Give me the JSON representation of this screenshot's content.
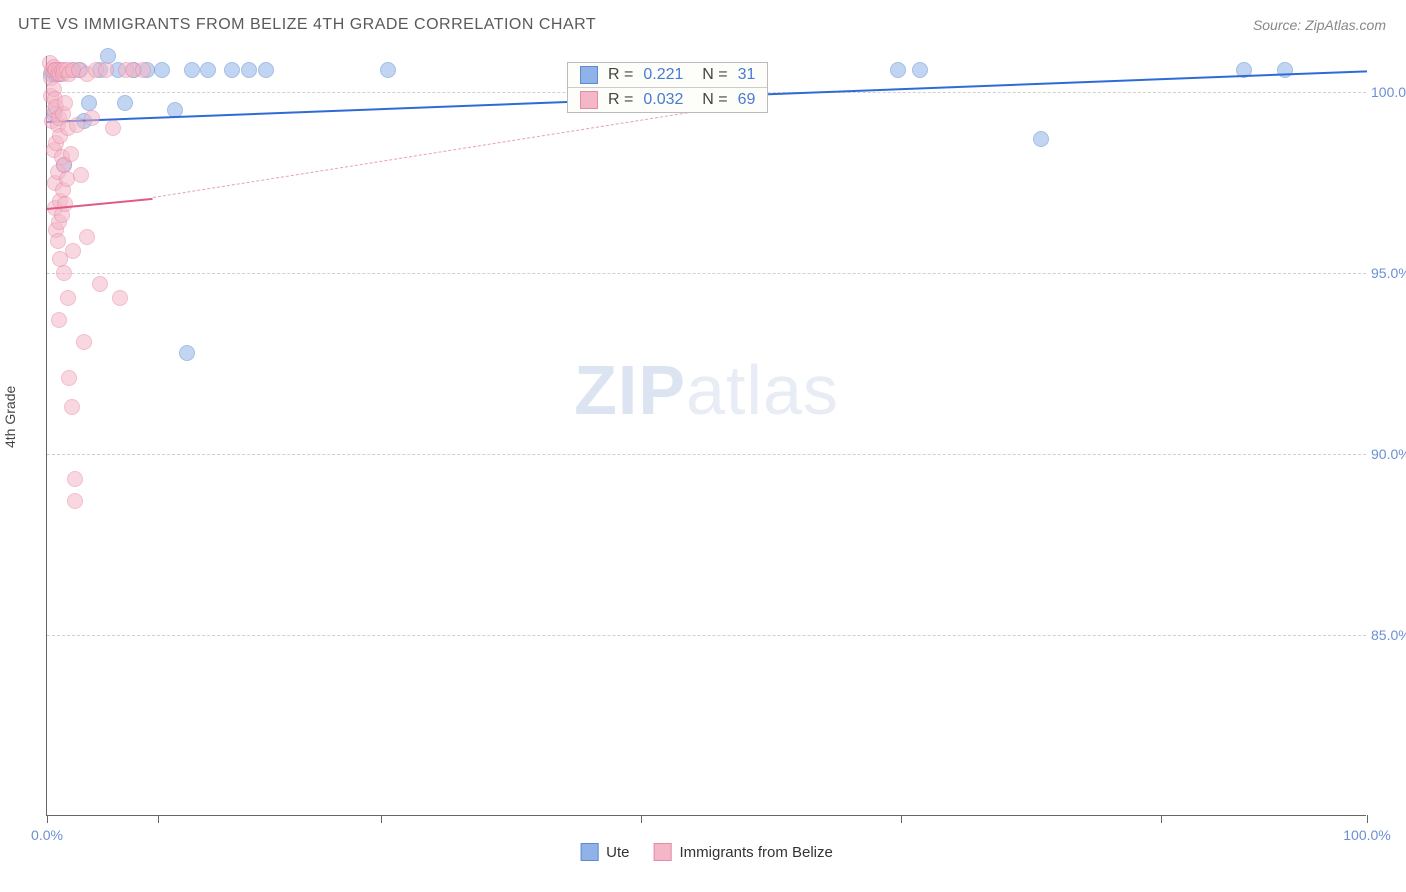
{
  "title": "UTE VS IMMIGRANTS FROM BELIZE 4TH GRADE CORRELATION CHART",
  "source": "Source: ZipAtlas.com",
  "ylabel": "4th Grade",
  "watermark_zip": "ZIP",
  "watermark_atlas": "atlas",
  "chart": {
    "type": "scatter",
    "background_color": "#ffffff",
    "grid_color": "#d0d0d0",
    "border_color": "#666666",
    "xlim": [
      0,
      100
    ],
    "ylim": [
      80,
      101
    ],
    "xtick_positions": [
      0,
      8.4,
      25.3,
      45.0,
      64.7,
      84.4,
      100
    ],
    "xtick_label_left": "0.0%",
    "xtick_label_right": "100.0%",
    "ytick_positions": [
      85,
      90,
      95,
      100
    ],
    "ytick_labels": [
      "85.0%",
      "90.0%",
      "95.0%",
      "100.0%"
    ],
    "tick_label_color": "#6b8fd4",
    "tick_fontsize": 14,
    "marker_radius": 8,
    "marker_opacity": 0.55
  },
  "series": [
    {
      "name": "Ute",
      "fill": "#8fb3e8",
      "stroke": "#5e8bd0",
      "r_label": "R =",
      "r_value": "0.221",
      "n_label": "N =",
      "n_value": "31",
      "trend": {
        "x1": 0,
        "y1": 99.2,
        "x2": 100,
        "y2": 100.6,
        "color": "#2e6bd6",
        "width": 2.5,
        "dash": "solid"
      },
      "points": [
        [
          0.3,
          100.5
        ],
        [
          0.5,
          99.4
        ],
        [
          0.6,
          100.5
        ],
        [
          1.0,
          100.5
        ],
        [
          1.3,
          98.0
        ],
        [
          2.0,
          100.6
        ],
        [
          2.5,
          100.6
        ],
        [
          2.8,
          99.2
        ],
        [
          3.2,
          99.7
        ],
        [
          4.0,
          100.6
        ],
        [
          4.6,
          101.0
        ],
        [
          5.4,
          100.6
        ],
        [
          5.9,
          99.7
        ],
        [
          6.6,
          100.6
        ],
        [
          7.6,
          100.6
        ],
        [
          8.7,
          100.6
        ],
        [
          9.7,
          99.5
        ],
        [
          10.6,
          92.8
        ],
        [
          11.0,
          100.6
        ],
        [
          12.2,
          100.6
        ],
        [
          14.0,
          100.6
        ],
        [
          15.3,
          100.6
        ],
        [
          16.6,
          100.6
        ],
        [
          25.8,
          100.6
        ],
        [
          64.5,
          100.6
        ],
        [
          66.1,
          100.6
        ],
        [
          75.3,
          98.7
        ],
        [
          90.7,
          100.6
        ],
        [
          93.8,
          100.6
        ]
      ]
    },
    {
      "name": "Immigrants from Belize",
      "fill": "#f4b7c7",
      "stroke": "#e68aa7",
      "r_label": "R =",
      "r_value": "0.032",
      "n_label": "N =",
      "n_value": "69",
      "trend": {
        "x1": 0,
        "y1": 96.8,
        "x2": 100,
        "y2": 100.3,
        "color": "#e05a84",
        "width": 2,
        "dash": "solid",
        "segment_end": 8
      },
      "trend_dashed": {
        "x1": 8,
        "y1": 97.1,
        "x2": 53,
        "y2": 99.7,
        "color": "#e8a0b5",
        "width": 1.5
      },
      "points": [
        [
          0.2,
          100.8
        ],
        [
          0.3,
          100.4
        ],
        [
          0.3,
          99.9
        ],
        [
          0.4,
          100.6
        ],
        [
          0.4,
          99.2
        ],
        [
          0.5,
          100.7
        ],
        [
          0.5,
          100.1
        ],
        [
          0.5,
          99.5
        ],
        [
          0.5,
          98.4
        ],
        [
          0.6,
          100.6
        ],
        [
          0.6,
          99.8
        ],
        [
          0.6,
          97.5
        ],
        [
          0.6,
          96.8
        ],
        [
          0.7,
          100.6
        ],
        [
          0.7,
          99.6
        ],
        [
          0.7,
          98.6
        ],
        [
          0.7,
          96.2
        ],
        [
          0.8,
          100.5
        ],
        [
          0.8,
          99.1
        ],
        [
          0.8,
          97.8
        ],
        [
          0.8,
          95.9
        ],
        [
          0.9,
          100.6
        ],
        [
          0.9,
          99.3
        ],
        [
          0.9,
          96.4
        ],
        [
          0.9,
          93.7
        ],
        [
          1.0,
          100.5
        ],
        [
          1.0,
          98.8
        ],
        [
          1.0,
          97.0
        ],
        [
          1.0,
          95.4
        ],
        [
          1.1,
          100.6
        ],
        [
          1.1,
          98.2
        ],
        [
          1.1,
          96.6
        ],
        [
          1.2,
          100.5
        ],
        [
          1.2,
          99.4
        ],
        [
          1.2,
          97.3
        ],
        [
          1.3,
          100.6
        ],
        [
          1.3,
          98.0
        ],
        [
          1.3,
          95.0
        ],
        [
          1.4,
          99.7
        ],
        [
          1.4,
          96.9
        ],
        [
          1.5,
          100.6
        ],
        [
          1.5,
          97.6
        ],
        [
          1.6,
          99.0
        ],
        [
          1.6,
          94.3
        ],
        [
          1.7,
          100.5
        ],
        [
          1.7,
          92.1
        ],
        [
          1.8,
          98.3
        ],
        [
          1.9,
          91.3
        ],
        [
          2.0,
          100.6
        ],
        [
          2.0,
          95.6
        ],
        [
          2.1,
          89.3
        ],
        [
          2.1,
          88.7
        ],
        [
          2.3,
          99.1
        ],
        [
          2.4,
          100.6
        ],
        [
          2.6,
          97.7
        ],
        [
          2.8,
          93.1
        ],
        [
          3.0,
          100.5
        ],
        [
          3.0,
          96.0
        ],
        [
          3.4,
          99.3
        ],
        [
          3.7,
          100.6
        ],
        [
          4.0,
          94.7
        ],
        [
          4.5,
          100.6
        ],
        [
          5.0,
          99.0
        ],
        [
          5.5,
          94.3
        ],
        [
          6.0,
          100.6
        ],
        [
          6.5,
          100.6
        ],
        [
          7.3,
          100.6
        ]
      ]
    }
  ],
  "bottom_legend": [
    {
      "label": "Ute",
      "fill": "#8fb3e8",
      "stroke": "#5e8bd0"
    },
    {
      "label": "Immigrants from Belize",
      "fill": "#f4b7c7",
      "stroke": "#e68aa7"
    }
  ]
}
